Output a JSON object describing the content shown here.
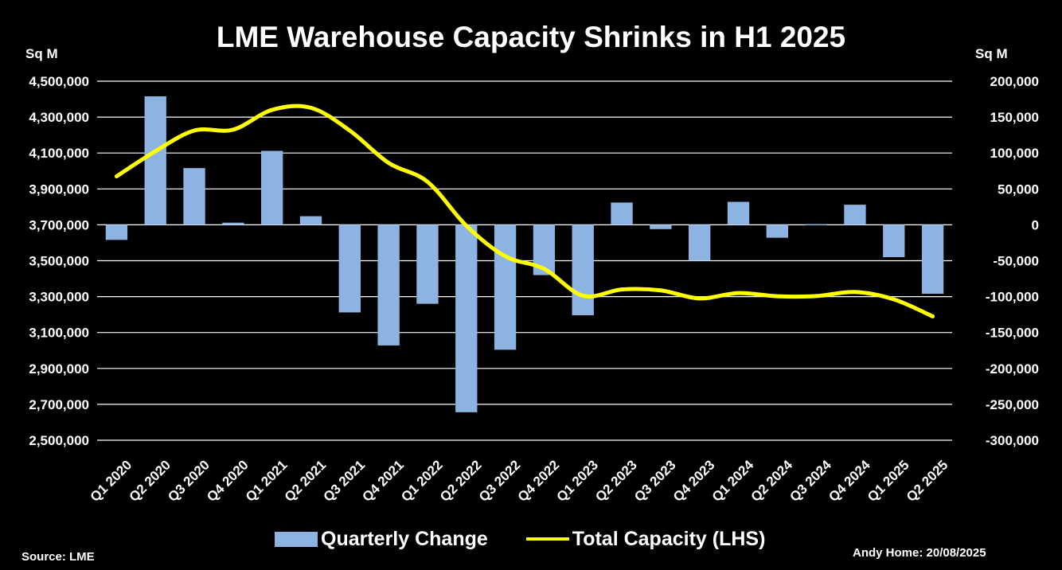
{
  "chart_data": {
    "type": "bar+line",
    "title": "LME Warehouse Capacity Shrinks in H1 2025",
    "left_axis_label": "Sq M",
    "right_axis_label": "Sq M",
    "left_ylim": [
      2500000,
      4500000
    ],
    "right_ylim": [
      -300000,
      200000
    ],
    "left_ticks": [
      "4,500,000",
      "4,300,000",
      "4,100,000",
      "3,900,000",
      "3,700,000",
      "3,500,000",
      "3,300,000",
      "3,100,000",
      "2,900,000",
      "2,700,000",
      "2,500,000"
    ],
    "right_ticks": [
      "200,000",
      "150,000",
      "100,000",
      "50,000",
      "0",
      "-50,000",
      "-100,000",
      "-150,000",
      "-200,000",
      "-250,000",
      "-300,000"
    ],
    "categories": [
      "Q1 2020",
      "Q2 2020",
      "Q3 2020",
      "Q4 2020",
      "Q1 2021",
      "Q2 2021",
      "Q3 2021",
      "Q4 2021",
      "Q1 2022",
      "Q2 2022",
      "Q3 2022",
      "Q4 2022",
      "Q1 2023",
      "Q2 2023",
      "Q3 2023",
      "Q4 2023",
      "Q1 2024",
      "Q2 2024",
      "Q3 2024",
      "Q4 2024",
      "Q1 2025",
      "Q2 2025"
    ],
    "series": [
      {
        "name": "Quarterly Change",
        "axis": "right",
        "kind": "bar",
        "values": [
          -21000,
          179000,
          79000,
          3000,
          103000,
          12000,
          -122000,
          -168000,
          -110000,
          -261000,
          -174000,
          -70000,
          -126000,
          31000,
          -6000,
          -50000,
          32000,
          -18000,
          1000,
          28000,
          -45000,
          -96000
        ]
      },
      {
        "name": "Total Capacity (LHS)",
        "axis": "left",
        "kind": "line",
        "values": [
          3970000,
          4110000,
          4225000,
          4230000,
          4340000,
          4352000,
          4225000,
          4045000,
          3940000,
          3695000,
          3525000,
          3455000,
          3305000,
          3340000,
          3335000,
          3290000,
          3320000,
          3302000,
          3303000,
          3326000,
          3285000,
          3190000
        ]
      }
    ],
    "legend_position": "bottom",
    "grid": true
  },
  "legend": {
    "bar_label": "Quarterly Change",
    "line_label": "Total Capacity (LHS)"
  },
  "footer": {
    "source": "Source: LME",
    "credit": "Andy Home: 20/08/2025"
  },
  "colors": {
    "background": "#000000",
    "bar": "#8db3e2",
    "line": "#ffff00",
    "grid": "#ffffff",
    "text": "#ffffff"
  }
}
